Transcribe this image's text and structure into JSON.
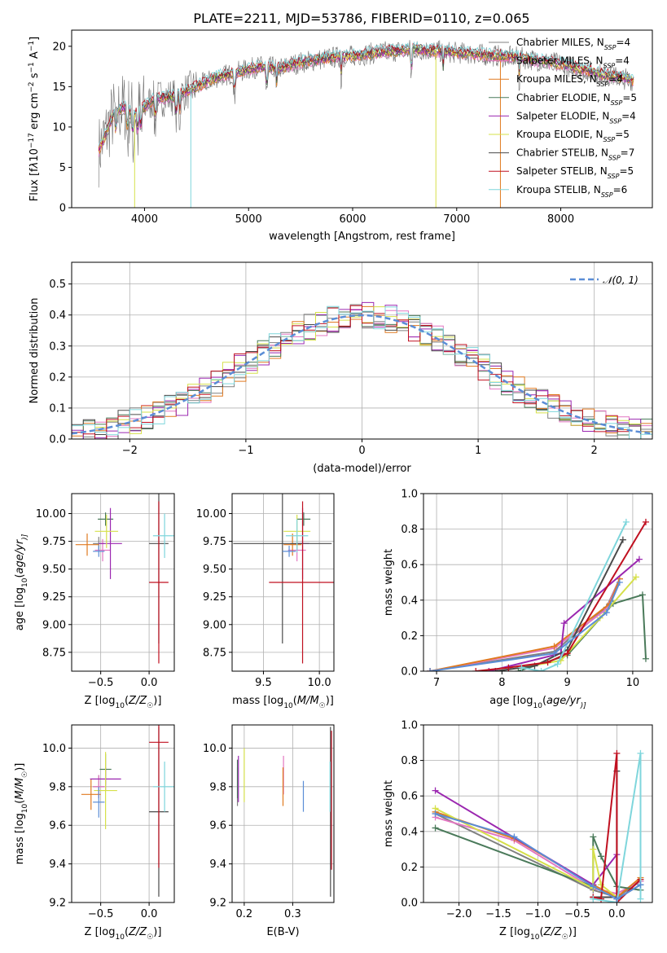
{
  "chart_data": [
    {
      "id": "spectrum",
      "type": "line",
      "title": "PLATE=2211, MJD=53786, FIBERID=0110, z=0.065",
      "xlabel": "wavelength [Angstrom, rest frame]",
      "ylabel_parts": [
        "Flux [f",
        "λ",
        "10",
        "−17",
        " erg cm",
        "−2",
        " s",
        "−1",
        " A",
        "−1",
        "]"
      ],
      "xlim": [
        3300,
        8880
      ],
      "ylim": [
        0,
        22
      ],
      "xticks": [
        4000,
        5000,
        6000,
        7000,
        8000
      ],
      "yticks": [
        0,
        5,
        10,
        15,
        20
      ],
      "legend_position": "upper right",
      "series": [
        {
          "name": "Chabrier MILES, N_SSP=4",
          "label_main": "Chabrier MILES, N",
          "label_sub": "SSP",
          "label_end": "=4",
          "color": "#808080"
        },
        {
          "name": "Salpeter MILES, N_SSP=4",
          "label_main": "Salpeter MILES, N",
          "label_sub": "SSP",
          "label_end": "=4",
          "color": "#e377c2"
        },
        {
          "name": "Kroupa MILES, N_SSP=4",
          "label_main": "Kroupa MILES, N",
          "label_sub": "SSP",
          "label_end": "=4",
          "color": "#e07a20"
        },
        {
          "name": "Chabrier ELODIE, N_SSP=5",
          "label_main": "Chabrier ELODIE, N",
          "label_sub": "SSP",
          "label_end": "=5",
          "color": "#4a7a5a"
        },
        {
          "name": "Salpeter ELODIE, N_SSP=4",
          "label_main": "Salpeter ELODIE, N",
          "label_sub": "SSP",
          "label_end": "=4",
          "color": "#9b27b0"
        },
        {
          "name": "Kroupa ELODIE, N_SSP=5",
          "label_main": "Kroupa ELODIE, N",
          "label_sub": "SSP",
          "label_end": "=5",
          "color": "#d6e04a"
        },
        {
          "name": "Chabrier STELIB, N_SSP=7",
          "label_main": "Chabrier STELIB, N",
          "label_sub": "SSP",
          "label_end": "=7",
          "color": "#4a4a4a"
        },
        {
          "name": "Salpeter STELIB, N_SSP=5",
          "label_main": "Salpeter STELIB, N",
          "label_sub": "SSP",
          "label_end": "=5",
          "color": "#c01020"
        },
        {
          "name": "Kroupa STELIB, N_SSP=6",
          "label_main": "Kroupa STELIB, N",
          "label_sub": "SSP",
          "label_end": "=6",
          "color": "#7fd6dc"
        }
      ],
      "observed_spectrum_color": "#707070",
      "continuum_points": [
        [
          3560,
          7
        ],
        [
          3700,
          11.5
        ],
        [
          3800,
          12.5
        ],
        [
          3900,
          11.5
        ],
        [
          4000,
          12.5
        ],
        [
          4100,
          13.5
        ],
        [
          4300,
          13.8
        ],
        [
          4500,
          15
        ],
        [
          4700,
          16.2
        ],
        [
          4900,
          16.8
        ],
        [
          5100,
          17.5
        ],
        [
          5300,
          17.3
        ],
        [
          5500,
          18
        ],
        [
          5800,
          18.6
        ],
        [
          6000,
          18.8
        ],
        [
          6300,
          19.3
        ],
        [
          6600,
          19.6
        ],
        [
          6900,
          19.3
        ],
        [
          7200,
          19.0
        ],
        [
          7600,
          18.6
        ],
        [
          8000,
          17.8
        ],
        [
          8400,
          16.5
        ],
        [
          8700,
          15.8
        ]
      ]
    },
    {
      "id": "residual_hist",
      "type": "histogram",
      "xlabel": "(data-model)/error",
      "ylabel": "Normed distribution",
      "xlim": [
        -2.5,
        2.5
      ],
      "ylim": [
        0,
        0.57
      ],
      "xticks": [
        -2,
        -1,
        0,
        1,
        2
      ],
      "yticks": [
        0.0,
        0.1,
        0.2,
        0.3,
        0.4,
        0.5
      ],
      "grid": true,
      "legend": "𝒩(0, 1)",
      "legend_position": "upper right",
      "reference_curve": {
        "name": "N(0,1)",
        "mean": 0,
        "sigma": 1,
        "color": "#5b8dd6",
        "style": "dashed"
      },
      "bin_width": 0.1
    },
    {
      "id": "age_vs_Z",
      "type": "errorbar",
      "xlabel_parts": [
        "Z [log",
        "10",
        "(",
        "Z/Z",
        "☉",
        ")]"
      ],
      "ylabel_parts": [
        "age  [log",
        "10",
        "(",
        "age/yr",
        ")]"
      ],
      "xlim": [
        -0.8,
        0.26
      ],
      "ylim": [
        8.58,
        10.18
      ],
      "xticks": [
        -0.5,
        0.0
      ],
      "yticks": [
        8.75,
        9.0,
        9.25,
        9.5,
        9.75,
        10.0
      ],
      "grid": true,
      "points": [
        {
          "color": "#808080",
          "x": -0.52,
          "xerr": 0.06,
          "y": 9.73,
          "yerr": 0.06
        },
        {
          "color": "#e377c2",
          "x": -0.48,
          "xerr": 0.08,
          "y": 9.67,
          "yerr": 0.1
        },
        {
          "color": "#e07a20",
          "x": -0.64,
          "xerr": 0.12,
          "y": 9.72,
          "yerr": 0.1
        },
        {
          "color": "#4a7a5a",
          "x": -0.45,
          "xerr": 0.08,
          "y": 9.95,
          "yerr": 0.06
        },
        {
          "color": "#9b27b0",
          "x": -0.4,
          "xerr": 0.12,
          "y": 9.73,
          "yerr": 0.32
        },
        {
          "color": "#d6e04a",
          "x": -0.44,
          "xerr": 0.12,
          "y": 9.84,
          "yerr": 0.15
        },
        {
          "color": "#4a4a4a",
          "x": 0.1,
          "xerr": 0.1,
          "y": 9.73,
          "yerr": 0.9
        },
        {
          "color": "#c01020",
          "x": 0.1,
          "xerr": 0.1,
          "y": 9.38,
          "yerr": 0.73
        },
        {
          "color": "#7fd6dc",
          "x": 0.16,
          "xerr": 0.12,
          "y": 9.8,
          "yerr": 0.2
        },
        {
          "color": "#5b8dd6",
          "x": -0.52,
          "xerr": 0.06,
          "y": 9.66,
          "yerr": 0.05
        }
      ]
    },
    {
      "id": "age_vs_mass",
      "type": "errorbar",
      "xlabel_parts": [
        "mass [log",
        "10",
        "(",
        "M/M",
        "☉",
        ")]"
      ],
      "ylabel": "",
      "xlim": [
        9.22,
        10.13
      ],
      "ylim": [
        8.58,
        10.18
      ],
      "xticks": [
        9.5,
        10.0
      ],
      "yticks": [
        8.75,
        9.0,
        9.25,
        9.5,
        9.75,
        10.0
      ],
      "grid": true,
      "points": [
        {
          "color": "#808080",
          "x": 9.8,
          "xerr": 0.06,
          "y": 9.73,
          "yerr": 0.06
        },
        {
          "color": "#e377c2",
          "x": 9.8,
          "xerr": 0.08,
          "y": 9.67,
          "yerr": 0.1
        },
        {
          "color": "#e07a20",
          "x": 9.76,
          "xerr": 0.08,
          "y": 9.72,
          "yerr": 0.1
        },
        {
          "color": "#4a7a5a",
          "x": 9.86,
          "xerr": 0.06,
          "y": 9.95,
          "yerr": 0.06
        },
        {
          "color": "#9b27b0",
          "x": 9.85,
          "xerr": 0.06,
          "y": 9.73,
          "yerr": 0.32
        },
        {
          "color": "#d6e04a",
          "x": 9.8,
          "xerr": 0.12,
          "y": 9.84,
          "yerr": 0.15
        },
        {
          "color": "#4a4a4a",
          "x": 9.67,
          "xerr": 0.44,
          "y": 9.73,
          "yerr": 0.9
        },
        {
          "color": "#c01020",
          "x": 9.85,
          "xerr": 0.3,
          "y": 9.38,
          "yerr": 0.73
        },
        {
          "color": "#7fd6dc",
          "x": 9.8,
          "xerr": 0.1,
          "y": 9.8,
          "yerr": 0.15
        },
        {
          "color": "#5b8dd6",
          "x": 9.73,
          "xerr": 0.06,
          "y": 9.66,
          "yerr": 0.05
        }
      ]
    },
    {
      "id": "massweight_vs_age",
      "type": "line",
      "xlabel_parts": [
        "age  [log",
        "10",
        "(",
        "age/yr",
        ")]"
      ],
      "ylabel": "mass weight",
      "xlim": [
        6.8,
        10.3
      ],
      "ylim": [
        0,
        1.0
      ],
      "xticks": [
        7,
        8,
        9,
        10
      ],
      "yticks": [
        0.0,
        0.2,
        0.4,
        0.6,
        0.8,
        1.0
      ],
      "grid": true,
      "series": [
        {
          "color": "#808080",
          "x": [
            6.9,
            8.8,
            9.6,
            9.8
          ],
          "y": [
            0.0,
            0.11,
            0.36,
            0.52
          ]
        },
        {
          "color": "#e377c2",
          "x": [
            6.9,
            8.8,
            9.6,
            9.8
          ],
          "y": [
            0.0,
            0.13,
            0.35,
            0.52
          ]
        },
        {
          "color": "#e07a20",
          "x": [
            6.9,
            8.8,
            9.65,
            9.8
          ],
          "y": [
            0.0,
            0.14,
            0.38,
            0.52
          ]
        },
        {
          "color": "#4a7a5a",
          "x": [
            8.25,
            9.0,
            9.7,
            10.15,
            10.2
          ],
          "y": [
            0.0,
            0.09,
            0.38,
            0.43,
            0.07
          ]
        },
        {
          "color": "#9b27b0",
          "x": [
            7.8,
            8.9,
            8.95,
            10.1
          ],
          "y": [
            0.0,
            0.1,
            0.27,
            0.63
          ]
        },
        {
          "color": "#d6e04a",
          "x": [
            8.3,
            8.9,
            9.5,
            10.05
          ],
          "y": [
            0.02,
            0.06,
            0.3,
            0.53
          ]
        },
        {
          "color": "#4a4a4a",
          "x": [
            7.9,
            8.5,
            9.0,
            9.85
          ],
          "y": [
            0.0,
            0.03,
            0.12,
            0.74
          ]
        },
        {
          "color": "#c01020",
          "x": [
            7.6,
            8.1,
            8.7,
            9.0,
            10.2
          ],
          "y": [
            0.0,
            0.02,
            0.05,
            0.1,
            0.84
          ]
        },
        {
          "color": "#7fd6dc",
          "x": [
            8.3,
            8.6,
            8.85,
            9.9
          ],
          "y": [
            0.02,
            0.0,
            0.04,
            0.84
          ]
        },
        {
          "color": "#5b8dd6",
          "x": [
            6.9,
            8.8,
            9.6,
            9.8
          ],
          "y": [
            0.0,
            0.1,
            0.33,
            0.5
          ]
        }
      ]
    },
    {
      "id": "mass_vs_Z",
      "type": "errorbar",
      "xlabel_parts": [
        "Z [log",
        "10",
        "(",
        "Z/Z",
        "☉",
        ")]"
      ],
      "ylabel_parts": [
        "mass [log",
        "10",
        "(",
        "M/M",
        "☉",
        ")]"
      ],
      "xlim": [
        -0.8,
        0.26
      ],
      "ylim": [
        9.2,
        10.12
      ],
      "xticks": [
        -0.5,
        0.0
      ],
      "yticks": [
        9.2,
        9.4,
        9.6,
        9.8,
        10.0
      ],
      "grid": true,
      "points": [
        {
          "color": "#808080",
          "x": -0.52,
          "xerr": 0.06,
          "y": 9.8,
          "yerr": 0.06
        },
        {
          "color": "#e377c2",
          "x": -0.52,
          "xerr": 0.06,
          "y": 9.8,
          "yerr": 0.06
        },
        {
          "color": "#e07a20",
          "x": -0.6,
          "xerr": 0.1,
          "y": 9.76,
          "yerr": 0.08
        },
        {
          "color": "#4a7a5a",
          "x": -0.45,
          "xerr": 0.06,
          "y": 9.89,
          "yerr": 0.08
        },
        {
          "color": "#9b27b0",
          "x": -0.45,
          "xerr": 0.16,
          "y": 9.84,
          "yerr": 0.06
        },
        {
          "color": "#d6e04a",
          "x": -0.45,
          "xerr": 0.12,
          "y": 9.78,
          "yerr": 0.2
        },
        {
          "color": "#4a4a4a",
          "x": 0.1,
          "xerr": 0.1,
          "y": 9.67,
          "yerr": 0.44
        },
        {
          "color": "#c01020",
          "x": 0.1,
          "xerr": 0.1,
          "y": 10.03,
          "yerr": 0.65
        },
        {
          "color": "#7fd6dc",
          "x": 0.16,
          "xerr": 0.12,
          "y": 9.8,
          "yerr": 0.13
        },
        {
          "color": "#5b8dd6",
          "x": -0.52,
          "xerr": 0.06,
          "y": 9.72,
          "yerr": 0.08
        }
      ]
    },
    {
      "id": "mass_vs_EBV",
      "type": "errorbar",
      "xlabel": "E(B-V)",
      "ylabel": "",
      "xlim": [
        0.175,
        0.385
      ],
      "ylim": [
        9.2,
        10.12
      ],
      "xticks": [
        0.2,
        0.3
      ],
      "yticks": [
        9.2,
        9.4,
        9.6,
        9.8,
        10.0
      ],
      "grid": true,
      "points": [
        {
          "color": "#808080",
          "x": 0.186,
          "xerr": 0,
          "y": 9.8,
          "yerr": 0.1
        },
        {
          "color": "#e377c2",
          "x": 0.281,
          "xerr": 0,
          "y": 9.86,
          "yerr": 0.1
        },
        {
          "color": "#e07a20",
          "x": 0.28,
          "xerr": 0,
          "y": 9.8,
          "yerr": 0.1
        },
        {
          "color": "#4a7a5a",
          "x": 0.186,
          "xerr": 0,
          "y": 9.84,
          "yerr": 0.1
        },
        {
          "color": "#9b27b0",
          "x": 0.188,
          "xerr": 0,
          "y": 9.84,
          "yerr": 0.12
        },
        {
          "color": "#d6e04a",
          "x": 0.2,
          "xerr": 0,
          "y": 9.86,
          "yerr": 0.14
        },
        {
          "color": "#4a4a4a",
          "x": 0.378,
          "xerr": 0,
          "y": 9.67,
          "yerr": 0.44
        },
        {
          "color": "#c01020",
          "x": 0.38,
          "xerr": 0,
          "y": 9.73,
          "yerr": 0.36
        },
        {
          "color": "#7fd6dc",
          "x": 0.377,
          "xerr": 0,
          "y": 9.8,
          "yerr": 0.13
        },
        {
          "color": "#5b8dd6",
          "x": 0.322,
          "xerr": 0,
          "y": 9.75,
          "yerr": 0.08
        }
      ]
    },
    {
      "id": "massweight_vs_Z",
      "type": "line",
      "xlabel_parts": [
        "Z [log",
        "10",
        "(",
        "Z/Z",
        "☉",
        ")]"
      ],
      "ylabel": "mass weight",
      "xlim": [
        -2.45,
        0.45
      ],
      "ylim": [
        0,
        1.0
      ],
      "xticks": [
        -2.0,
        -1.5,
        -1.0,
        -0.5,
        0.0
      ],
      "yticks": [
        0.0,
        0.2,
        0.4,
        0.6,
        0.8,
        1.0
      ],
      "grid": true,
      "series": [
        {
          "color": "#808080",
          "x": [
            -2.3,
            -0.3,
            0.0,
            0.3
          ],
          "y": [
            0.5,
            0.07,
            0.03,
            0.12
          ]
        },
        {
          "color": "#e377c2",
          "x": [
            -2.3,
            -1.3,
            -0.3,
            0.0,
            0.3
          ],
          "y": [
            0.48,
            0.35,
            0.08,
            0.05,
            0.12
          ]
        },
        {
          "color": "#e07a20",
          "x": [
            -2.3,
            -1.3,
            -0.3,
            0.0,
            0.3
          ],
          "y": [
            0.51,
            0.36,
            0.1,
            0.03,
            0.14
          ]
        },
        {
          "color": "#4a7a5a",
          "x": [
            -2.3,
            -0.3,
            -0.3,
            -0.2,
            0.0,
            0.3
          ],
          "y": [
            0.42,
            0.09,
            0.37,
            0.26,
            0.09,
            0.07
          ]
        },
        {
          "color": "#9b27b0",
          "x": [
            -2.3,
            -0.3,
            0.0,
            0.0
          ],
          "y": [
            0.63,
            0.1,
            0.27,
            0.0
          ]
        },
        {
          "color": "#d6e04a",
          "x": [
            -2.3,
            -0.3,
            -0.3,
            -0.2,
            0.0
          ],
          "y": [
            0.53,
            0.08,
            0.3,
            0.1,
            0.03
          ]
        },
        {
          "color": "#4a4a4a",
          "x": [
            -0.3,
            0.0,
            0.0,
            0.0,
            0.3
          ],
          "y": [
            0.03,
            0.03,
            0.74,
            0.02,
            0.1
          ]
        },
        {
          "color": "#c01020",
          "x": [
            -0.3,
            -0.2,
            0.0,
            0.0,
            0.3
          ],
          "y": [
            0.03,
            0.02,
            0.84,
            0.0,
            0.13
          ]
        },
        {
          "color": "#7fd6dc",
          "x": [
            -0.3,
            0.0,
            0.3,
            0.3
          ],
          "y": [
            0.02,
            0.0,
            0.84,
            0.02
          ]
        },
        {
          "color": "#5b8dd6",
          "x": [
            -2.3,
            -1.3,
            -0.3,
            0.0,
            0.3
          ],
          "y": [
            0.5,
            0.37,
            0.09,
            0.02,
            0.1
          ]
        }
      ]
    }
  ]
}
